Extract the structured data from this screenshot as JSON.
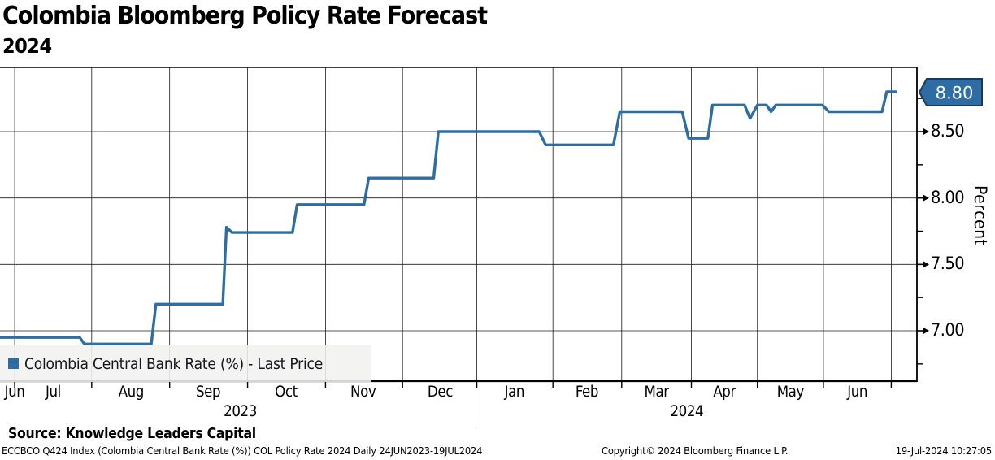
{
  "title": "Colombia Bloomberg Policy Rate Forecast",
  "subtitle": "2024",
  "legend": {
    "label": "Colombia Central Bank Rate (%) - Last Price",
    "marker_color": "#2e6da4"
  },
  "y_axis": {
    "label": "Percent",
    "major_ticks": [
      {
        "value": 7.0,
        "label": "7.00"
      },
      {
        "value": 7.5,
        "label": "7.50"
      },
      {
        "value": 8.0,
        "label": "8.00"
      },
      {
        "value": 8.5,
        "label": "8.50"
      }
    ],
    "minor_tick_values": [
      6.75,
      7.25,
      7.75,
      8.25,
      8.75
    ],
    "last_price_badge": {
      "text": "8.80",
      "value": 8.8,
      "fill": "#2e6da4",
      "border": "#1b3a5f",
      "text_color": "#ffffff"
    }
  },
  "x_axis": {
    "month_labels": [
      {
        "label": "Jun",
        "t": 0.016
      },
      {
        "label": "Jul",
        "t": 0.058
      },
      {
        "label": "Aug",
        "t": 0.143
      },
      {
        "label": "Sep",
        "t": 0.227
      },
      {
        "label": "Oct",
        "t": 0.312
      },
      {
        "label": "Nov",
        "t": 0.396
      },
      {
        "label": "Dec",
        "t": 0.48
      },
      {
        "label": "Jan",
        "t": 0.561
      },
      {
        "label": "Feb",
        "t": 0.64
      },
      {
        "label": "Mar",
        "t": 0.716
      },
      {
        "label": "Apr",
        "t": 0.79
      },
      {
        "label": "May",
        "t": 0.862
      },
      {
        "label": "Jun",
        "t": 0.935
      }
    ],
    "year_labels": [
      {
        "label": "2023",
        "t": 0.262
      },
      {
        "label": "2024",
        "t": 0.749
      }
    ],
    "boundary_ticks_t": [
      0.016,
      0.1,
      0.185,
      0.27,
      0.355,
      0.439,
      0.52,
      0.603,
      0.678,
      0.754,
      0.826,
      0.898,
      0.972
    ]
  },
  "footer": {
    "source": "Source: Knowledge Leaders Capital",
    "ticker": "ECCBCO Q424 Index (Colombia Central Bank Rate (%)) COL Policy Rate 2024  Daily 24JUN2023-19JUL2024",
    "copyright": "Copyright© 2024 Bloomberg Finance L.P.",
    "datetime": "19-Jul-2024 10:27:05"
  },
  "colors": {
    "line": "#2e6da4",
    "grid": "#1c1c1c",
    "axis": "#000000",
    "legend_bg": "#f1f1f0",
    "background": "#ffffff"
  },
  "chart_data": {
    "type": "line",
    "subtype": "step",
    "title": "Colombia Bloomberg Policy Rate Forecast 2024",
    "ylabel": "Percent",
    "ylim": [
      6.6,
      8.95
    ],
    "y_major_ticks": [
      7.0,
      7.5,
      8.0,
      8.5
    ],
    "x_range": "24JUN2023 - 19JUL2024",
    "x_month_sequence": [
      "Jun 2023",
      "Jul 2023",
      "Aug 2023",
      "Sep 2023",
      "Oct 2023",
      "Nov 2023",
      "Dec 2023",
      "Jan 2024",
      "Feb 2024",
      "Mar 2024",
      "Apr 2024",
      "May 2024",
      "Jun 2024",
      "Jul 2024"
    ],
    "grid": true,
    "legend_position": "bottom-left",
    "series": [
      {
        "name": "Colombia Central Bank Rate (%) - Last Price",
        "color": "#2e6da4",
        "last_price": 8.8,
        "points_t_value": [
          [
            0.0,
            6.95
          ],
          [
            0.087,
            6.95
          ],
          [
            0.092,
            6.9
          ],
          [
            0.165,
            6.9
          ],
          [
            0.17,
            7.2
          ],
          [
            0.243,
            7.2
          ],
          [
            0.247,
            7.78
          ],
          [
            0.253,
            7.74
          ],
          [
            0.319,
            7.74
          ],
          [
            0.324,
            7.95
          ],
          [
            0.397,
            7.95
          ],
          [
            0.402,
            8.15
          ],
          [
            0.473,
            8.15
          ],
          [
            0.478,
            8.5
          ],
          [
            0.588,
            8.5
          ],
          [
            0.595,
            8.4
          ],
          [
            0.669,
            8.4
          ],
          [
            0.676,
            8.65
          ],
          [
            0.744,
            8.65
          ],
          [
            0.751,
            8.45
          ],
          [
            0.772,
            8.45
          ],
          [
            0.777,
            8.7
          ],
          [
            0.812,
            8.7
          ],
          [
            0.818,
            8.6
          ],
          [
            0.826,
            8.7
          ],
          [
            0.836,
            8.7
          ],
          [
            0.841,
            8.65
          ],
          [
            0.846,
            8.7
          ],
          [
            0.897,
            8.7
          ],
          [
            0.904,
            8.65
          ],
          [
            0.962,
            8.65
          ],
          [
            0.967,
            8.8
          ],
          [
            0.977,
            8.8
          ]
        ]
      }
    ]
  }
}
